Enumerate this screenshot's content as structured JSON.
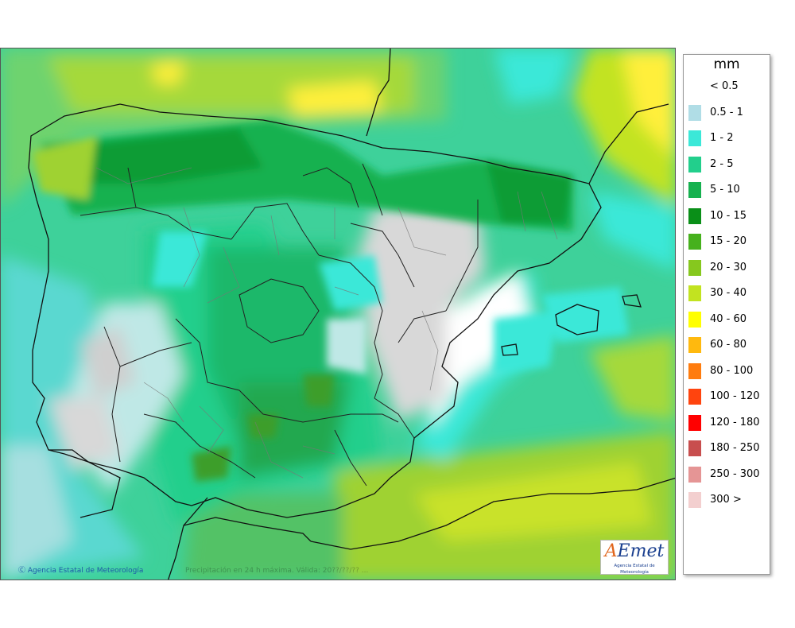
{
  "legend": {
    "title": "mm",
    "items": [
      {
        "label": "< 0.5",
        "color": "#ffffff"
      },
      {
        "label": "0.5 - 1",
        "color": "#b0dde6"
      },
      {
        "label": "1 - 2",
        "color": "#3be8d8"
      },
      {
        "label": "2 - 5",
        "color": "#22cf8c"
      },
      {
        "label": "5 - 10",
        "color": "#16b14f"
      },
      {
        "label": "10 - 15",
        "color": "#0a8f18"
      },
      {
        "label": "15 - 20",
        "color": "#46b11d"
      },
      {
        "label": "20 - 30",
        "color": "#86c81e"
      },
      {
        "label": "30 - 40",
        "color": "#c2e320"
      },
      {
        "label": "40 - 60",
        "color": "#ffff00"
      },
      {
        "label": "60 - 80",
        "color": "#ffb90e"
      },
      {
        "label": "80 - 100",
        "color": "#ff7c0e"
      },
      {
        "label": "100 - 120",
        "color": "#ff440e"
      },
      {
        "label": "120 - 180",
        "color": "#ff0000"
      },
      {
        "label": "180 - 250",
        "color": "#c84e4e"
      },
      {
        "label": "250 - 300",
        "color": "#e59595"
      },
      {
        "label": "300 >",
        "color": "#f3cfcf"
      }
    ]
  },
  "map": {
    "copyright": "Ⓒ Agencia Estatal de Meteorología",
    "caption": "Precipitación en 24 h máxima. Válida: 20??/??/?? ...",
    "logo_text": "AEmet",
    "logo_subtitle": "Agencia Estatal de Meteorología"
  }
}
